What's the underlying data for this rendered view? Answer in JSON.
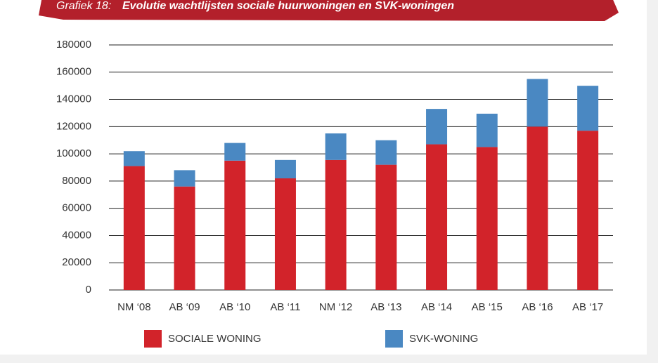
{
  "chart_data": {
    "type": "stacked_bar",
    "title_label": "Grafiek 18:",
    "title": "Evolutie wachtlijsten sociale huurwoningen en SVK-woningen",
    "categories": [
      "NM ‘08",
      "AB ‘09",
      "AB ‘10",
      "AB ‘11",
      "NM ‘12",
      "AB ‘13",
      "AB ‘14",
      "AB ‘15",
      "AB ‘16",
      "AB ‘17"
    ],
    "series": [
      {
        "name": "SOCIALE WONING",
        "color": "#d2232a",
        "values": [
          91000,
          76000,
          95000,
          82000,
          95500,
          92000,
          107000,
          105000,
          120000,
          117000
        ]
      },
      {
        "name": "SVK-WONING",
        "color": "#4a88c2",
        "values": [
          11000,
          12000,
          13000,
          13500,
          19500,
          18000,
          26000,
          24500,
          35000,
          33000
        ]
      }
    ],
    "ylim": [
      0,
      180000
    ],
    "yticks": [
      0,
      20000,
      40000,
      60000,
      80000,
      100000,
      120000,
      140000,
      160000,
      180000
    ],
    "grid": true
  }
}
